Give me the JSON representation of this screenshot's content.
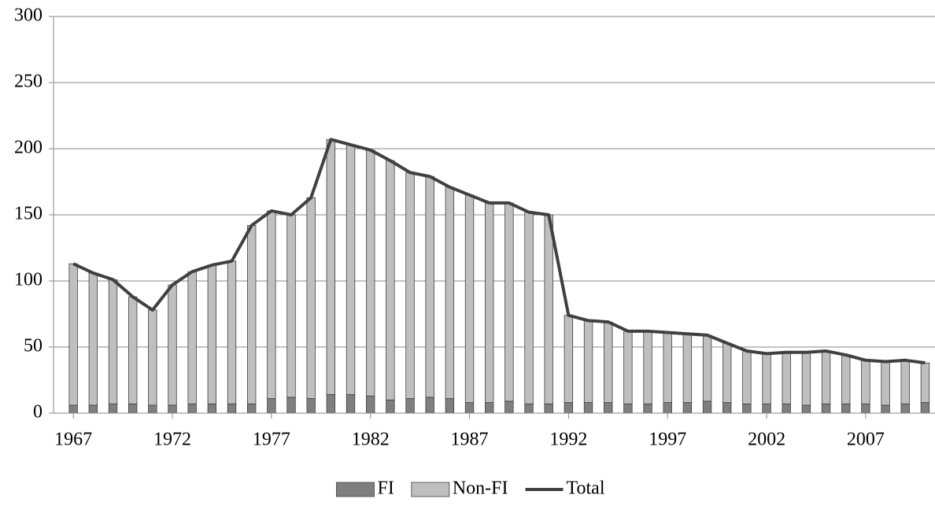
{
  "chart_data": {
    "type": "bar",
    "stacked": true,
    "x": [
      1967,
      1968,
      1969,
      1970,
      1971,
      1972,
      1973,
      1974,
      1975,
      1976,
      1977,
      1978,
      1979,
      1980,
      1981,
      1982,
      1983,
      1984,
      1985,
      1986,
      1987,
      1988,
      1989,
      1990,
      1991,
      1992,
      1993,
      1994,
      1995,
      1996,
      1997,
      1998,
      1999,
      2000,
      2001,
      2002,
      2003,
      2004,
      2005,
      2006,
      2007,
      2008,
      2009,
      2010
    ],
    "xlim": [
      1966,
      2010.5
    ],
    "xticks": [
      1967,
      1972,
      1977,
      1982,
      1987,
      1992,
      1997,
      2002,
      2007
    ],
    "ylim": [
      0,
      300
    ],
    "yticks": [
      0,
      50,
      100,
      150,
      200,
      250,
      300
    ],
    "grid": true,
    "legend": "bottom",
    "series": [
      {
        "name": "FI",
        "type": "bar",
        "color": "#7f7f7f",
        "values": [
          6,
          6,
          7,
          7,
          6,
          6,
          7,
          7,
          7,
          7,
          11,
          12,
          11,
          14,
          14,
          13,
          10,
          11,
          12,
          11,
          8,
          8,
          9,
          7,
          7,
          8,
          8,
          8,
          7,
          7,
          8,
          8,
          9,
          8,
          7,
          7,
          7,
          6,
          7,
          7,
          7,
          6,
          7,
          8
        ]
      },
      {
        "name": "Non-FI",
        "type": "bar",
        "color": "#bfbfbf",
        "values": [
          107,
          100,
          94,
          81,
          72,
          91,
          100,
          105,
          108,
          135,
          142,
          138,
          152,
          193,
          189,
          186,
          181,
          171,
          167,
          160,
          157,
          151,
          150,
          145,
          143,
          66,
          62,
          61,
          55,
          55,
          53,
          52,
          50,
          45,
          40,
          38,
          39,
          40,
          40,
          37,
          33,
          33,
          33,
          30
        ]
      },
      {
        "name": "Total",
        "type": "line",
        "color": "#404040",
        "values": [
          113,
          106,
          101,
          88,
          78,
          97,
          107,
          112,
          115,
          142,
          153,
          150,
          163,
          207,
          203,
          199,
          191,
          182,
          179,
          171,
          165,
          159,
          159,
          152,
          150,
          74,
          70,
          69,
          62,
          62,
          61,
          60,
          59,
          53,
          47,
          45,
          46,
          46,
          47,
          44,
          40,
          39,
          40,
          38
        ]
      }
    ]
  }
}
